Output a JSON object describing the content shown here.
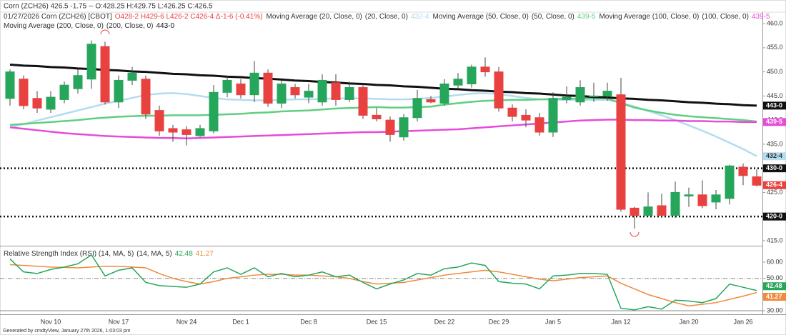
{
  "title": "Corn (ZCH26) 426.5 -1.75 -- O:428.25 H:429.75 L:426.25 C:426.5",
  "footer": "Generated by cmdtyView, January 27th 2026, 1:03:03 pm",
  "chart_data": {
    "type": "candlestick",
    "symbol": "01/27/2026 Corn (ZCH26) [CBOT]",
    "ohlc_text": "O428-2 H429-6 L426-2 C426-4 Δ-1-6 (-0.41%)",
    "up_color": "#26a65b",
    "down_color": "#e8413f",
    "last_label": "426-4",
    "categories": [
      null,
      null,
      null,
      "Nov 10",
      null,
      null,
      null,
      null,
      "Nov 17",
      null,
      null,
      null,
      null,
      "Nov 24",
      null,
      null,
      null,
      "Dec 1",
      null,
      null,
      null,
      null,
      "Dec 8",
      null,
      null,
      null,
      null,
      "Dec 15",
      null,
      null,
      null,
      null,
      "Dec 22",
      null,
      null,
      null,
      "Dec 29",
      null,
      null,
      null,
      "Jan 5",
      null,
      null,
      null,
      null,
      "Jan 12",
      null,
      null,
      null,
      null,
      "Jan 20",
      null,
      null,
      null,
      "Jan 26",
      null
    ],
    "open": [
      444.5,
      448.5,
      444.5,
      442.25,
      444.25,
      446.5,
      448.5,
      455.25,
      443.75,
      448.25,
      448.5,
      442,
      438.25,
      438,
      436.75,
      437.75,
      445.75,
      447.5,
      445.25,
      449.75,
      443.5,
      446.75,
      444.75,
      443.75,
      447.75,
      444.25,
      446.75,
      441,
      440,
      436.5,
      440.5,
      444.25,
      443.5,
      447.25,
      447.5,
      451,
      450,
      442.5,
      441,
      440.5,
      437.5,
      444.25,
      443.75,
      445,
      445,
      445.25,
      421.75,
      420.25,
      422.25,
      420.25,
      424.25,
      424.5,
      423,
      423.75,
      430.25,
      428.25
    ],
    "high": [
      450.5,
      449.25,
      446,
      446,
      448,
      450.5,
      456.5,
      456.25,
      449.25,
      451,
      449.25,
      443,
      439,
      438.75,
      439,
      447.25,
      449.25,
      448.5,
      452.25,
      450.5,
      448.25,
      447.5,
      447.5,
      449.5,
      449.5,
      448,
      447.5,
      442.5,
      440.75,
      441.25,
      446.25,
      445,
      448.5,
      449.75,
      451.5,
      453,
      451,
      443.25,
      442.25,
      441.5,
      445.75,
      447,
      448.25,
      447.75,
      447.75,
      448.75,
      422,
      425,
      424.75,
      427.25,
      426,
      427.5,
      425.5,
      430.75,
      431,
      429.75
    ],
    "low": [
      443,
      442.25,
      441.5,
      441.5,
      443.5,
      445.5,
      446.5,
      443.25,
      442.5,
      447.25,
      440.25,
      436.75,
      435.5,
      434.75,
      436.5,
      437.25,
      444.75,
      444.5,
      443.75,
      442.75,
      442.5,
      444.5,
      443.5,
      443,
      443,
      443.75,
      440.25,
      439.75,
      435.5,
      435.75,
      439.75,
      443.5,
      443,
      446.5,
      446.75,
      449,
      441.75,
      439.75,
      438.5,
      436.75,
      436.5,
      443.5,
      443,
      443.75,
      444,
      421,
      417.5,
      420,
      419.75,
      419.75,
      422,
      421.75,
      421.5,
      422.5,
      426.5,
      426.25
    ],
    "close": [
      450,
      443,
      442.5,
      444.75,
      447.25,
      449.25,
      455.75,
      443.75,
      448.25,
      449.75,
      441.25,
      437.75,
      437.5,
      437,
      438.25,
      445.75,
      448.25,
      445.25,
      449.75,
      443.5,
      447.5,
      445.25,
      446,
      448.25,
      444.25,
      446.75,
      441,
      440.25,
      437,
      440.5,
      444.5,
      443.75,
      447.5,
      448.5,
      451,
      450,
      442.5,
      440.75,
      440,
      437.5,
      444.5,
      444.75,
      446.75,
      445,
      446,
      421.5,
      420.25,
      422,
      420.25,
      425,
      424.5,
      422.25,
      424.5,
      430.5,
      428.5,
      426.5
    ],
    "series": [
      {
        "name": "Moving Average (20, Close, 0)",
        "params": "(20, Close, 0)",
        "value_label": "432-4",
        "color": "#b3dcef",
        "label_text_color": "#333333",
        "values": [
          438.5,
          439.2,
          439.9,
          440.6,
          441.3,
          442.0,
          442.7,
          443.4,
          444.0,
          444.6,
          445.2,
          445.5,
          445.6,
          445.4,
          445.0,
          444.6,
          444.3,
          444.2,
          444.1,
          444.1,
          444.2,
          444.3,
          444.3,
          444.4,
          444.5,
          444.5,
          444.5,
          444.4,
          444.3,
          444.3,
          444.4,
          444.6,
          444.9,
          445.2,
          445.5,
          445.6,
          445.4,
          445.0,
          444.6,
          444.3,
          444.2,
          444.2,
          444.2,
          444.2,
          444.2,
          443.6,
          442.8,
          441.9,
          441.0,
          440.0,
          438.9,
          437.8,
          436.6,
          435.3,
          434.0,
          432.5
        ]
      },
      {
        "name": "Moving Average (50, Close, 0)",
        "params": "(50, Close, 0)",
        "value_label": "439-5",
        "color": "#5fcf80",
        "label_text_color": "#ffffff",
        "boxed": false,
        "values": [
          439.0,
          439.2,
          439.4,
          439.6,
          439.8,
          440.0,
          440.3,
          440.5,
          440.7,
          440.8,
          440.9,
          440.9,
          441.0,
          441.0,
          441.0,
          441.1,
          441.2,
          441.3,
          441.5,
          441.6,
          441.8,
          441.9,
          442.0,
          442.2,
          442.4,
          442.5,
          442.6,
          442.7,
          442.6,
          442.6,
          442.7,
          442.8,
          443.2,
          443.5,
          443.8,
          444.0,
          444.1,
          444.2,
          444.2,
          444.3,
          444.4,
          444.4,
          444.5,
          444.5,
          444.5,
          443.5,
          442.6,
          442.0,
          441.5,
          441.1,
          440.8,
          440.6,
          440.4,
          440.2,
          440.0,
          439.7
        ]
      },
      {
        "name": "Moving Average (100, Close, 0)",
        "params": "(100, Close, 0)",
        "value_label": "439-5",
        "color": "#e64bd9",
        "label_text_color": "#ffffff",
        "values": [
          438.5,
          438.2,
          437.9,
          437.6,
          437.3,
          437.1,
          436.9,
          436.7,
          436.6,
          436.5,
          436.4,
          436.3,
          436.3,
          436.2,
          436.3,
          436.4,
          436.5,
          436.6,
          436.7,
          436.8,
          436.9,
          437.0,
          437.1,
          437.2,
          437.3,
          437.4,
          437.5,
          437.5,
          437.6,
          437.7,
          437.8,
          437.9,
          438.0,
          438.1,
          438.3,
          438.5,
          438.7,
          438.9,
          439.1,
          439.3,
          439.5,
          439.7,
          439.9,
          440.0,
          440.1,
          440.1,
          440.0,
          440.0,
          439.9,
          439.9,
          439.8,
          439.8,
          439.7,
          439.7,
          439.6,
          439.6
        ]
      },
      {
        "name": "Moving Average (200, Close, 0)",
        "params": "(200, Close, 0)",
        "value_label": "443-0",
        "color": "#111111",
        "label_text_color": "#ffffff",
        "values": [
          451.5,
          451.3,
          451.2,
          451.0,
          450.9,
          450.7,
          450.6,
          450.4,
          450.3,
          450.1,
          450.0,
          449.8,
          449.6,
          449.5,
          449.3,
          449.2,
          449.0,
          448.9,
          448.7,
          448.6,
          448.4,
          448.2,
          448.1,
          447.9,
          447.8,
          447.6,
          447.5,
          447.3,
          447.2,
          447.0,
          446.9,
          446.7,
          446.5,
          446.4,
          446.2,
          446.1,
          445.9,
          445.8,
          445.6,
          445.5,
          445.3,
          445.1,
          445.0,
          444.8,
          444.7,
          444.5,
          444.4,
          444.2,
          444.1,
          443.9,
          443.7,
          443.6,
          443.4,
          443.3,
          443.1,
          443.0
        ]
      }
    ],
    "hlines": [
      {
        "value": 430,
        "label": "430-0"
      },
      {
        "value": 420,
        "label": "420-0"
      }
    ],
    "ylim": [
      414.1,
      461.2
    ],
    "yticks": [
      {
        "value": 415,
        "label": "415.0"
      },
      {
        "value": 420,
        "label": "420.0"
      },
      {
        "value": 425,
        "label": "425.0"
      },
      {
        "value": 430,
        "label": "430.0"
      },
      {
        "value": 435,
        "label": "435.0"
      },
      {
        "value": 440,
        "label": "440.0"
      },
      {
        "value": 445,
        "label": "445.0"
      },
      {
        "value": 450,
        "label": "450.0"
      },
      {
        "value": 455,
        "label": "455.0"
      },
      {
        "value": 460,
        "label": "460.0"
      }
    ],
    "rsi": {
      "title": "Relative Strength Index (RSI) (14, MA, 5)",
      "params": "(14, MA, 5)",
      "ylim": [
        27.8,
        69.3
      ],
      "yticks": [
        {
          "value": 30,
          "label": "30.00"
        },
        {
          "value": 50,
          "label": "50.00"
        },
        {
          "value": 60,
          "label": "60.00"
        }
      ],
      "reference": 50,
      "series": [
        {
          "value_label": "42.48",
          "color": "#26a65b",
          "values": [
            62,
            54,
            53,
            55.5,
            57,
            59,
            64.5,
            51.5,
            55,
            56.5,
            47.5,
            45.5,
            45,
            44.5,
            46.5,
            54,
            56.5,
            52.5,
            56.5,
            51,
            53,
            51,
            52,
            54,
            51,
            52,
            47.5,
            43.5,
            46.5,
            49,
            53,
            52,
            56,
            57,
            59.5,
            58,
            48,
            47,
            46.5,
            43.5,
            51.5,
            52,
            53,
            53,
            52.5,
            31.5,
            30.5,
            32.5,
            31,
            36.5,
            36,
            35,
            37.5,
            46.5,
            44.5,
            42.48
          ]
        },
        {
          "value_label": "41.27",
          "color": "#f08a3c",
          "values": [
            58.5,
            58,
            57.5,
            57,
            56.8,
            56.5,
            57,
            57.5,
            57.5,
            57,
            56.5,
            53,
            50,
            48,
            46.5,
            48,
            50,
            51,
            52,
            52.5,
            52.5,
            52,
            52,
            51.5,
            51,
            50,
            48,
            46.5,
            47,
            47.5,
            49,
            50.5,
            52,
            53,
            54,
            55,
            54,
            52.5,
            51,
            49.5,
            48.5,
            49.5,
            50.5,
            51,
            51.5,
            47,
            43.5,
            40,
            37.5,
            35,
            33,
            34,
            35,
            37,
            39,
            41.27
          ]
        }
      ]
    }
  }
}
